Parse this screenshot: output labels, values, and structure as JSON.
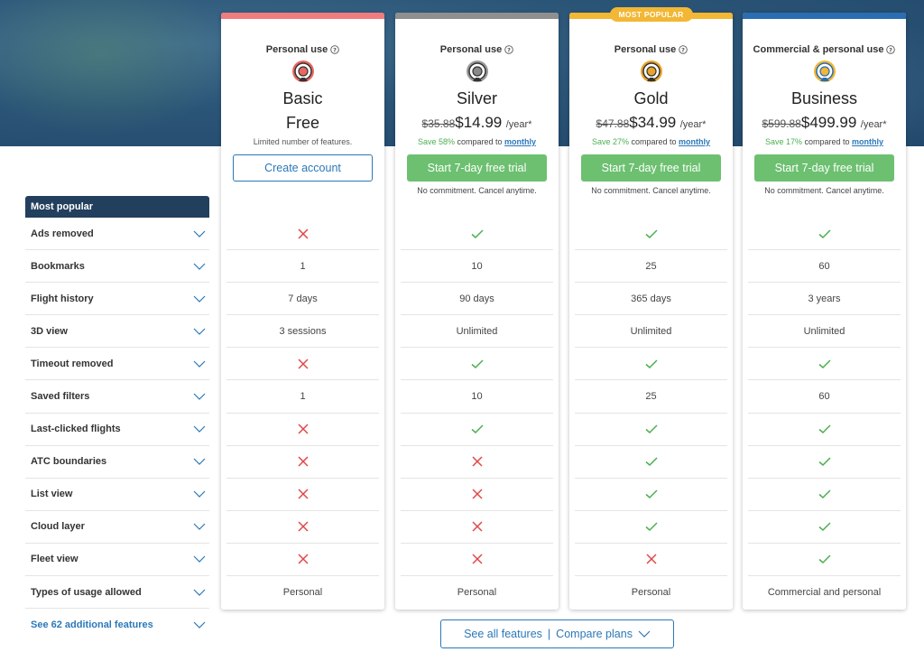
{
  "colors": {
    "basic": "#f07c80",
    "silver": "#8f8f8f",
    "gold": "#f2b734",
    "business": "#2a6db3",
    "check": "#4caf50",
    "cross": "#e04848"
  },
  "features": {
    "header": "Most popular",
    "rows": [
      "Ads removed",
      "Bookmarks",
      "Flight history",
      "3D view",
      "Timeout removed",
      "Saved filters",
      "Last-clicked flights",
      "ATC boundaries",
      "List view",
      "Cloud layer",
      "Fleet view",
      "Types of usage allowed"
    ],
    "more_link": "See 62 additional features"
  },
  "plans": [
    {
      "usage": "Personal use",
      "name": "Basic",
      "price": "Free",
      "note": "Limited number of features.",
      "cta": "Create account",
      "values": [
        "x",
        "1",
        "7 days",
        "3 sessions",
        "x",
        "1",
        "x",
        "x",
        "x",
        "x",
        "x",
        "Personal"
      ]
    },
    {
      "usage": "Personal use",
      "name": "Silver",
      "old_price": "$35.88",
      "price": "$14.99",
      "per": "/year*",
      "save_pct": "Save 58%",
      "save_text": "compared to",
      "save_link": "monthly",
      "cta": "Start 7-day free trial",
      "sub": "No commitment. Cancel anytime.",
      "values": [
        "check",
        "10",
        "90 days",
        "Unlimited",
        "check",
        "10",
        "check",
        "x",
        "x",
        "x",
        "x",
        "Personal"
      ]
    },
    {
      "usage": "Personal use",
      "badge": "MOST POPULAR",
      "name": "Gold",
      "old_price": "$47.88",
      "price": "$34.99",
      "per": "/year*",
      "save_pct": "Save 27%",
      "save_text": "compared to",
      "save_link": "monthly",
      "cta": "Start 7-day free trial",
      "sub": "No commitment. Cancel anytime.",
      "values": [
        "check",
        "25",
        "365 days",
        "Unlimited",
        "check",
        "25",
        "check",
        "check",
        "check",
        "check",
        "x",
        "Personal"
      ]
    },
    {
      "usage": "Commercial & personal use",
      "name": "Business",
      "old_price": "$599.88",
      "price": "$499.99",
      "per": "/year*",
      "save_pct": "Save 17%",
      "save_text": "compared to",
      "save_link": "monthly",
      "cta": "Start 7-day free trial",
      "sub": "No commitment. Cancel anytime.",
      "values": [
        "check",
        "60",
        "3 years",
        "Unlimited",
        "check",
        "60",
        "check",
        "check",
        "check",
        "check",
        "check",
        "Commercial and personal"
      ]
    }
  ],
  "compare": {
    "left": "See all features",
    "sep": "|",
    "right": "Compare plans"
  }
}
